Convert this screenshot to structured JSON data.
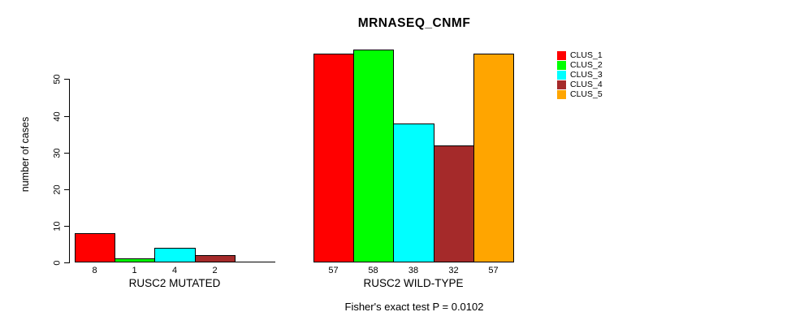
{
  "chart_data": {
    "type": "bar",
    "title": "MRNASEQ_CNMF",
    "ylabel": "number of cases",
    "xlabel": "",
    "yticks": [
      0,
      10,
      20,
      30,
      40,
      50
    ],
    "ylim": [
      0,
      58
    ],
    "grid": false,
    "legend_position": "top-right",
    "series_names": [
      "CLUS_1",
      "CLUS_2",
      "CLUS_3",
      "CLUS_4",
      "CLUS_5"
    ],
    "series_colors": [
      "#FF0000",
      "#00FF00",
      "#00FFFF",
      "#A52A2A",
      "#FFA500"
    ],
    "groups": [
      {
        "label": "RUSC2 MUTATED",
        "values": [
          8,
          1,
          4,
          2,
          0
        ],
        "bar_labels": [
          "8",
          "1",
          "4",
          "2",
          ""
        ]
      },
      {
        "label": "RUSC2 WILD-TYPE",
        "values": [
          57,
          58,
          38,
          32,
          57
        ],
        "bar_labels": [
          "57",
          "58",
          "38",
          "32",
          "57"
        ]
      }
    ],
    "annotation": "Fisher's exact test P = 0.0102"
  }
}
